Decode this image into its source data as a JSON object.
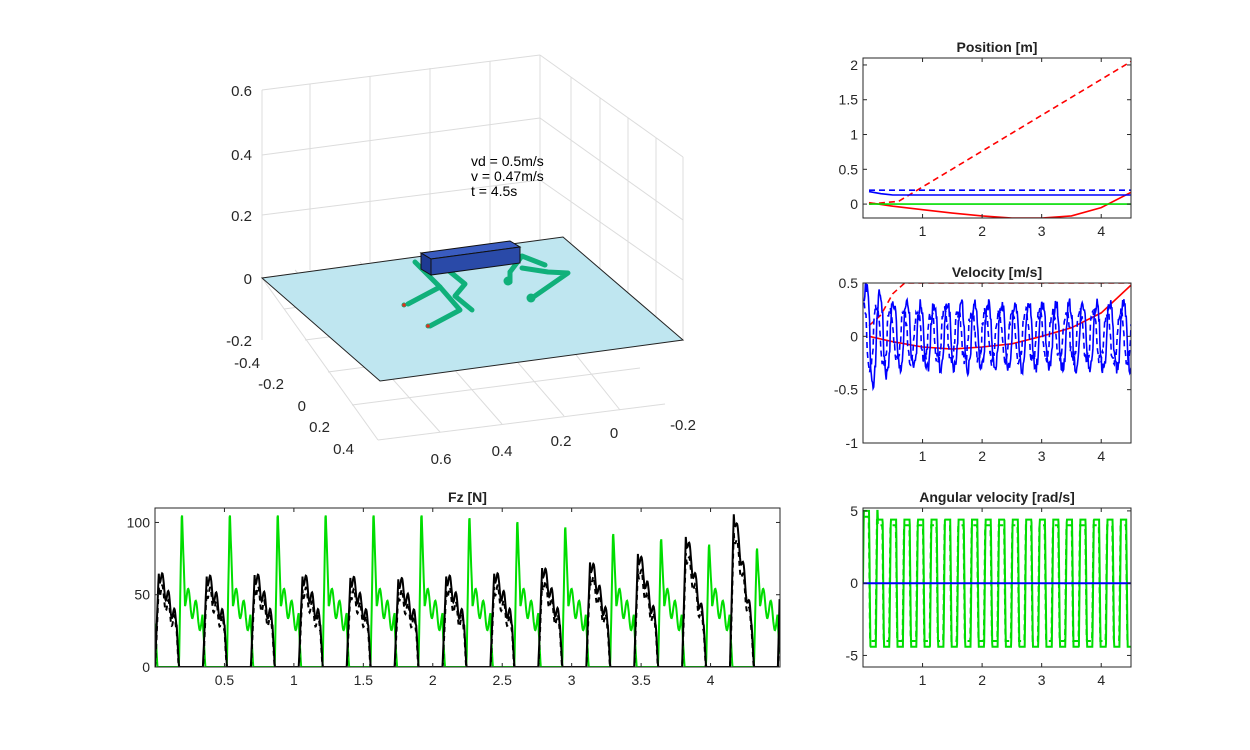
{
  "chart_data": [
    {
      "id": "robot",
      "type": "3d-scene",
      "title": "",
      "annotations": [
        "vd = 0.5m/s",
        "v = 0.47m/s",
        "t = 4.5s"
      ],
      "z_ticks": [
        "0.6",
        "0.4",
        "0.2",
        "0",
        "-0.2"
      ],
      "y_ticks": [
        "-0.4",
        "-0.2",
        "0",
        "0.2",
        "0.4"
      ],
      "x_ticks": [
        "0.6",
        "0.4",
        "0.2",
        "0",
        "-0.2"
      ],
      "colors": {
        "ground": "#bfe6f0",
        "body": "#2a4aa8",
        "legs": "#10b07a"
      }
    },
    {
      "id": "position",
      "type": "line",
      "title": "Position [m]",
      "xlim": [
        0,
        4.5
      ],
      "ylim": [
        -0.2,
        2.1
      ],
      "xticks": [
        1,
        2,
        3,
        4
      ],
      "yticks": [
        0,
        0.5,
        1,
        1.5,
        2
      ],
      "series": [
        {
          "color": "#ff0000",
          "dash": "6,4",
          "points": [
            [
              0.1,
              0.0
            ],
            [
              0.6,
              0.04
            ],
            [
              4.5,
              2.05
            ]
          ]
        },
        {
          "color": "#ff0000",
          "dash": "",
          "points": [
            [
              0.1,
              0.02
            ],
            [
              0.5,
              -0.03
            ],
            [
              1.0,
              -0.08
            ],
            [
              1.5,
              -0.13
            ],
            [
              2.0,
              -0.17
            ],
            [
              2.5,
              -0.2
            ],
            [
              3.0,
              -0.2
            ],
            [
              3.5,
              -0.17
            ],
            [
              4.0,
              -0.05
            ],
            [
              4.5,
              0.17
            ]
          ]
        },
        {
          "color": "#0000ff",
          "dash": "6,4",
          "points": [
            [
              0.1,
              0.2
            ],
            [
              4.5,
              0.2
            ]
          ]
        },
        {
          "color": "#0000ff",
          "dash": "",
          "points": [
            [
              0.1,
              0.18
            ],
            [
              0.3,
              0.15
            ],
            [
              0.5,
              0.13
            ],
            [
              4.5,
              0.13
            ]
          ]
        },
        {
          "color": "#00dd00",
          "dash": "",
          "points": [
            [
              0.1,
              0.0
            ],
            [
              4.5,
              0.0
            ]
          ]
        }
      ]
    },
    {
      "id": "velocity",
      "type": "line",
      "title": "Velocity [m/s]",
      "xlim": [
        0,
        4.5
      ],
      "ylim": [
        -1,
        0.5
      ],
      "xticks": [
        1,
        2,
        3,
        4
      ],
      "yticks": [
        -1,
        -0.5,
        0,
        0.5
      ],
      "series": [
        {
          "color": "#ff0000",
          "dash": "6,4",
          "points": [
            [
              0.1,
              0.1
            ],
            [
              0.3,
              0.2
            ],
            [
              0.5,
              0.4
            ],
            [
              0.7,
              0.5
            ],
            [
              4.5,
              0.5
            ]
          ]
        },
        {
          "color": "#ff0000",
          "dash": "",
          "points": [
            [
              0.1,
              0.0
            ],
            [
              0.5,
              -0.05
            ],
            [
              1.0,
              -0.1
            ],
            [
              1.5,
              -0.12
            ],
            [
              2.0,
              -0.1
            ],
            [
              2.5,
              -0.07
            ],
            [
              3.0,
              0.0
            ],
            [
              3.5,
              0.08
            ],
            [
              4.0,
              0.22
            ],
            [
              4.5,
              0.48
            ]
          ]
        },
        {
          "color": "#0000ff",
          "dash": "",
          "osc": true,
          "center": 0.0,
          "amp": 0.3,
          "freq": 4.4,
          "phase": 0.0,
          "seed": 1
        },
        {
          "color": "#0000ff",
          "dash": "6,4",
          "osc": true,
          "center": 0.0,
          "amp": 0.22,
          "freq": 4.4,
          "phase": 1.4,
          "seed": 2
        }
      ]
    },
    {
      "id": "fz",
      "type": "line",
      "title": "Fz [N]",
      "xlim": [
        0,
        4.5
      ],
      "ylim": [
        0,
        110
      ],
      "xticks": [
        0.5,
        1,
        1.5,
        2,
        2.5,
        3,
        3.5,
        4
      ],
      "yticks": [
        0,
        50,
        100
      ],
      "peaks_green": [
        110,
        110,
        110,
        110,
        110,
        110,
        108,
        105,
        101,
        96,
        92,
        88,
        85
      ],
      "peaks_black": [
        66,
        64,
        65,
        64,
        63,
        62,
        64,
        66,
        70,
        74,
        80,
        92,
        108
      ],
      "series": [
        {
          "color": "#00dd00",
          "dash": "",
          "name": "",
          "kind": "green"
        },
        {
          "color": "#000000",
          "dash": "",
          "name": "",
          "kind": "black"
        },
        {
          "color": "#000000",
          "dash": "5,4",
          "name": "",
          "kind": "black-dash"
        }
      ]
    },
    {
      "id": "angvel",
      "type": "line",
      "title": "Angular velocity [rad/s]",
      "xlim": [
        0,
        4.5
      ],
      "ylim": [
        -5.8,
        5.2
      ],
      "xticks": [
        1,
        2,
        3,
        4
      ],
      "yticks": [
        -5,
        0,
        5
      ],
      "series": [
        {
          "color": "#00dd00",
          "dash": "",
          "sq": true,
          "amp": 4.4,
          "freq": 4.4,
          "phase": 0.0
        },
        {
          "color": "#00dd00",
          "dash": "6,4",
          "sq": true,
          "amp": 4.0,
          "freq": 4.4,
          "phase": 0.15
        },
        {
          "color": "#0000ff",
          "dash": "",
          "points": [
            [
              0.0,
              0.0
            ],
            [
              4.5,
              0.0
            ]
          ]
        }
      ]
    }
  ]
}
